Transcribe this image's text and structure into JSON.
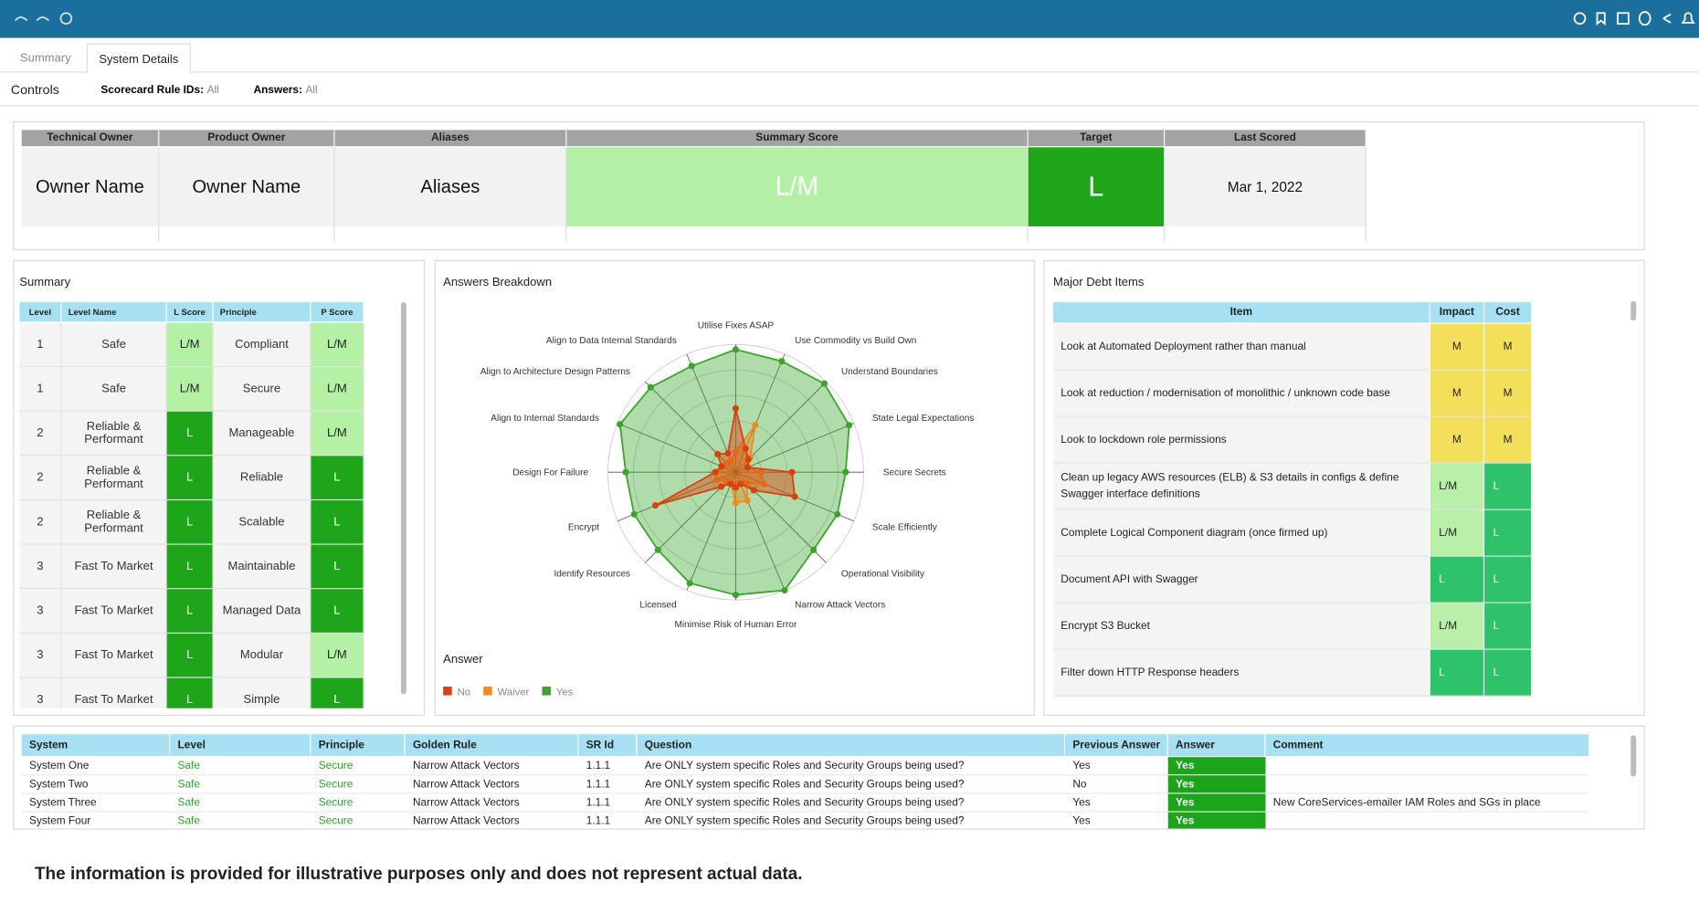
{
  "tabs": [
    "Summary",
    "System Details"
  ],
  "controls": {
    "title": "Controls",
    "filters": [
      {
        "label": "Scorecard Rule IDs:",
        "value": "All"
      },
      {
        "label": "Answers:",
        "value": "All"
      }
    ]
  },
  "kpi": {
    "headers": [
      "Technical Owner",
      "Product Owner",
      "Aliases",
      "Summary Score",
      "Target",
      "Last Scored"
    ],
    "values": [
      "Owner Name",
      "Owner Name",
      "Aliases",
      "L/M",
      "L",
      "Mar 1, 2022"
    ]
  },
  "summary": {
    "title": "Summary",
    "headers": [
      "Level",
      "Level Name",
      "L Score",
      "Principle",
      "P Score"
    ],
    "rows": [
      [
        "1",
        "Safe",
        "L/M",
        "Compliant",
        "L/M"
      ],
      [
        "1",
        "Safe",
        "L/M",
        "Secure",
        "L/M"
      ],
      [
        "2",
        "Reliable & Performant",
        "L",
        "Manageable",
        "L/M"
      ],
      [
        "2",
        "Reliable & Performant",
        "L",
        "Reliable",
        "L"
      ],
      [
        "2",
        "Reliable & Performant",
        "L",
        "Scalable",
        "L"
      ],
      [
        "3",
        "Fast To Market",
        "L",
        "Maintainable",
        "L"
      ],
      [
        "3",
        "Fast To Market",
        "L",
        "Managed Data",
        "L"
      ],
      [
        "3",
        "Fast To Market",
        "L",
        "Modular",
        "L/M"
      ],
      [
        "3",
        "Fast To Market",
        "L",
        "Simple",
        "L"
      ]
    ]
  },
  "chart_data": {
    "type": "radar",
    "title": "Answers Breakdown",
    "legend_title": "Answer",
    "categories": [
      "Utilise Fixes ASAP",
      "Use Commodity vs Build Own",
      "Understand Boundaries",
      "State Legal Expectations",
      "Secure Secrets",
      "Scale Efficiently",
      "Operational Visibility",
      "Narrow Attack Vectors",
      "Minimise Risk of Human Error",
      "Licensed",
      "Identify Resources",
      "Encrypt",
      "Design For Failure",
      "Align to Internal Standards",
      "Align to Architecture Design Patterns",
      "Align to Data Internal Standards"
    ],
    "rlim": [
      0,
      5
    ],
    "series": [
      {
        "name": "No",
        "color": "#d9400e",
        "values": [
          2.5,
          1,
          0.7,
          0.5,
          2.2,
          2.5,
          1,
          0.5,
          0.6,
          0.5,
          0.8,
          3.4,
          0.8,
          0.6,
          1,
          0.8
        ]
      },
      {
        "name": "Waiver",
        "color": "#f28a1b",
        "values": [
          0.8,
          2,
          0.8,
          0.5,
          1,
          1.2,
          0.6,
          1.2,
          1.2,
          0.5,
          0.5,
          0.8,
          0.8,
          0.6,
          0.5,
          0.5
        ]
      },
      {
        "name": "Yes",
        "color": "#3aa52a",
        "values": [
          4.8,
          4.7,
          4.9,
          4.8,
          4.3,
          4.3,
          4.3,
          5,
          4.8,
          4.7,
          4.3,
          4.3,
          4.3,
          4.9,
          4.7,
          4.5
        ]
      }
    ]
  },
  "debt": {
    "title": "Major Debt Items",
    "headers": [
      "Item",
      "Impact",
      "Cost"
    ],
    "rows": [
      [
        "Look at Automated Deployment rather than manual",
        "M",
        "M"
      ],
      [
        "Look at reduction / modernisation of monolithic / unknown code base",
        "M",
        "M"
      ],
      [
        "Look to lockdown role permissions",
        "M",
        "M"
      ],
      [
        "Clean up legacy AWS resources (ELB) & S3 details in configs & define Swagger interface definitions",
        "L/M",
        "L"
      ],
      [
        "Complete Logical Component diagram (once firmed up)",
        "L/M",
        "L"
      ],
      [
        "Document API with Swagger",
        "L",
        "L"
      ],
      [
        "Encrypt S3 Bucket",
        "L/M",
        "L"
      ],
      [
        "Filter down HTTP Response headers",
        "L",
        "L"
      ]
    ]
  },
  "details": {
    "headers": [
      "System",
      "Level",
      "Principle",
      "Golden Rule",
      "SR Id",
      "Question",
      "Previous Answer",
      "Answer",
      "Comment"
    ],
    "rows": [
      [
        "System One",
        "Safe",
        "Secure",
        "Narrow Attack Vectors",
        "1.1.1",
        "Are ONLY system specific Roles and Security Groups being used?",
        "Yes",
        "Yes",
        ""
      ],
      [
        "System Two",
        "Safe",
        "Secure",
        "Narrow Attack Vectors",
        "1.1.1",
        "Are ONLY system specific Roles and Security Groups being used?",
        "No",
        "Yes",
        ""
      ],
      [
        "System Three",
        "Safe",
        "Secure",
        "Narrow Attack Vectors",
        "1.1.1",
        "Are ONLY system specific Roles and Security Groups being used?",
        "Yes",
        "Yes",
        "New CoreServices-emailer IAM Roles and SGs in place"
      ],
      [
        "System Four",
        "Safe",
        "Secure",
        "Narrow Attack Vectors",
        "1.1.1",
        "Are ONLY system specific Roles and Security Groups being used?",
        "Yes",
        "Yes",
        ""
      ]
    ]
  },
  "footer": "The information is provided for illustrative purposes only and does not represent actual data."
}
